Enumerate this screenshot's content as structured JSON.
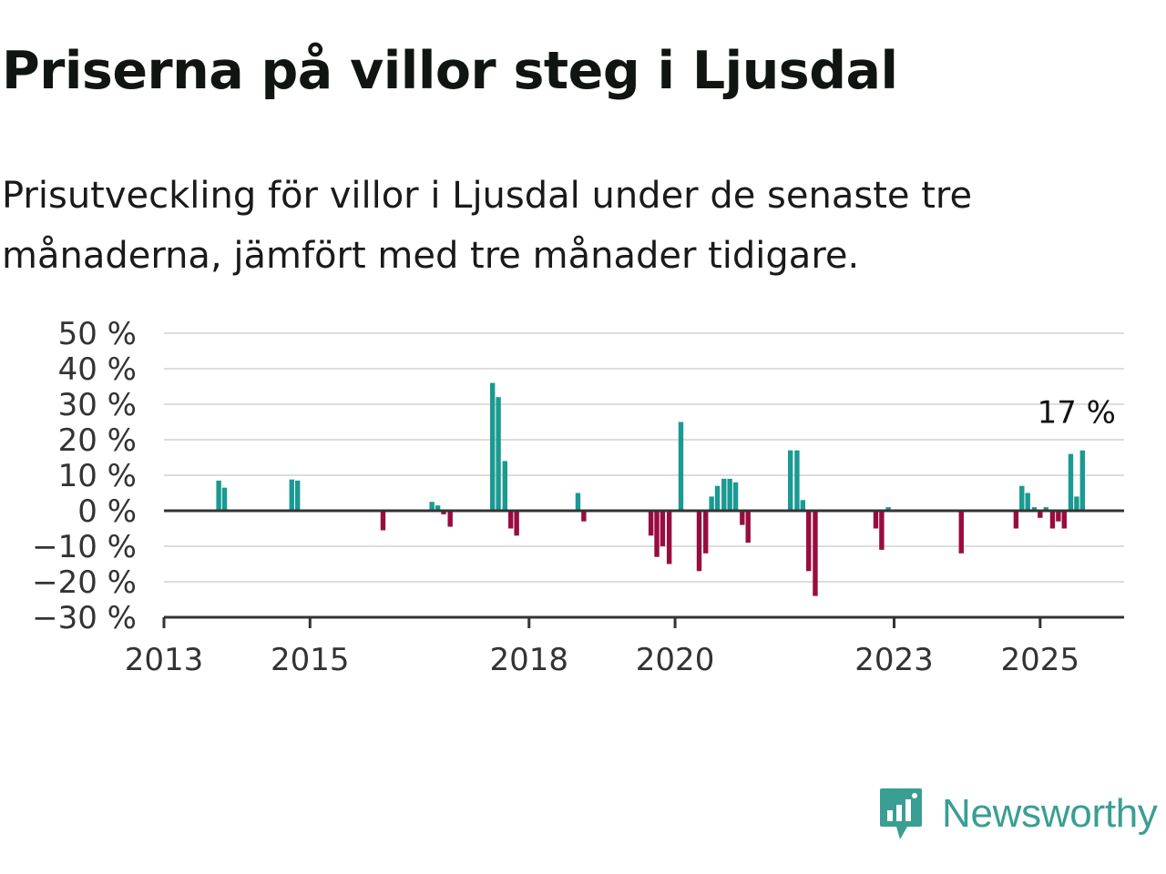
{
  "title": "Priserna på villor steg i Ljusdal",
  "subtitle": "Prisutveckling för villor i Ljusdal under de senaste tre månaderna, jämfört med tre månader tidigare.",
  "brand": {
    "name": "Newsworthy",
    "color": "#3a9e93",
    "icon": "newsworthy-logo-icon"
  },
  "colors": {
    "positive": "#1a9a92",
    "negative": "#990c3f",
    "grid": "#dddddd",
    "axis": "#333333"
  },
  "chart_data": {
    "type": "bar",
    "title": "Priserna på villor steg i Ljusdal",
    "subtitle": "Prisutveckling för villor i Ljusdal under de senaste tre månaderna, jämfört med tre månader tidigare.",
    "xlabel": "",
    "ylabel": "",
    "unit": "%",
    "xlim": [
      2013.0,
      2026.15
    ],
    "ylim": [
      -30,
      50
    ],
    "y_ticks": [
      50,
      40,
      30,
      20,
      10,
      0,
      -10,
      -20,
      -30
    ],
    "y_tick_labels": [
      "50 %",
      "40 %",
      "30 %",
      "20 %",
      "10 %",
      "0 %",
      "−10 %",
      "−20 %",
      "−30 %"
    ],
    "x_ticks": [
      2013,
      2015,
      2018,
      2020,
      2023,
      2025
    ],
    "x_tick_labels": [
      "2013",
      "2015",
      "2018",
      "2020",
      "2023",
      "2025"
    ],
    "grid": true,
    "annotation": {
      "x": 2025.5,
      "y": 17,
      "text": "17 %"
    },
    "points": [
      {
        "x": 2013.75,
        "y": 8.5
      },
      {
        "x": 2013.83,
        "y": 6.5
      },
      {
        "x": 2014.75,
        "y": 8.8
      },
      {
        "x": 2014.83,
        "y": 8.5
      },
      {
        "x": 2016.0,
        "y": -5.5
      },
      {
        "x": 2016.67,
        "y": 2.5
      },
      {
        "x": 2016.75,
        "y": 1.5
      },
      {
        "x": 2016.83,
        "y": -1.0
      },
      {
        "x": 2016.92,
        "y": -4.5
      },
      {
        "x": 2017.5,
        "y": 36.0
      },
      {
        "x": 2017.58,
        "y": 32.0
      },
      {
        "x": 2017.67,
        "y": 14.0
      },
      {
        "x": 2017.75,
        "y": -5.0
      },
      {
        "x": 2017.83,
        "y": -7.0
      },
      {
        "x": 2018.67,
        "y": 5.0
      },
      {
        "x": 2018.75,
        "y": -3.0
      },
      {
        "x": 2019.67,
        "y": -7.0
      },
      {
        "x": 2019.75,
        "y": -13.0
      },
      {
        "x": 2019.83,
        "y": -10.0
      },
      {
        "x": 2019.92,
        "y": -15.0
      },
      {
        "x": 2020.08,
        "y": 25.0
      },
      {
        "x": 2020.33,
        "y": -17.0
      },
      {
        "x": 2020.42,
        "y": -12.0
      },
      {
        "x": 2020.5,
        "y": 4.0
      },
      {
        "x": 2020.58,
        "y": 7.0
      },
      {
        "x": 2020.67,
        "y": 9.0
      },
      {
        "x": 2020.75,
        "y": 9.0
      },
      {
        "x": 2020.83,
        "y": 8.0
      },
      {
        "x": 2020.92,
        "y": -4.0
      },
      {
        "x": 2021.0,
        "y": -9.0
      },
      {
        "x": 2021.58,
        "y": 17.0
      },
      {
        "x": 2021.67,
        "y": 17.0
      },
      {
        "x": 2021.75,
        "y": 3.0
      },
      {
        "x": 2021.83,
        "y": -17.0
      },
      {
        "x": 2021.92,
        "y": -24.0
      },
      {
        "x": 2022.75,
        "y": -5.0
      },
      {
        "x": 2022.83,
        "y": -11.0
      },
      {
        "x": 2022.92,
        "y": 1.0
      },
      {
        "x": 2023.92,
        "y": -12.0
      },
      {
        "x": 2024.67,
        "y": -5.0
      },
      {
        "x": 2024.75,
        "y": 7.0
      },
      {
        "x": 2024.83,
        "y": 5.0
      },
      {
        "x": 2024.92,
        "y": 1.0
      },
      {
        "x": 2025.0,
        "y": -2.0
      },
      {
        "x": 2025.08,
        "y": 1.0
      },
      {
        "x": 2025.17,
        "y": -5.0
      },
      {
        "x": 2025.25,
        "y": -3.0
      },
      {
        "x": 2025.33,
        "y": -5.0
      },
      {
        "x": 2025.42,
        "y": 16.0
      },
      {
        "x": 2025.5,
        "y": 4.0
      },
      {
        "x": 2025.58,
        "y": 17.0
      }
    ]
  }
}
